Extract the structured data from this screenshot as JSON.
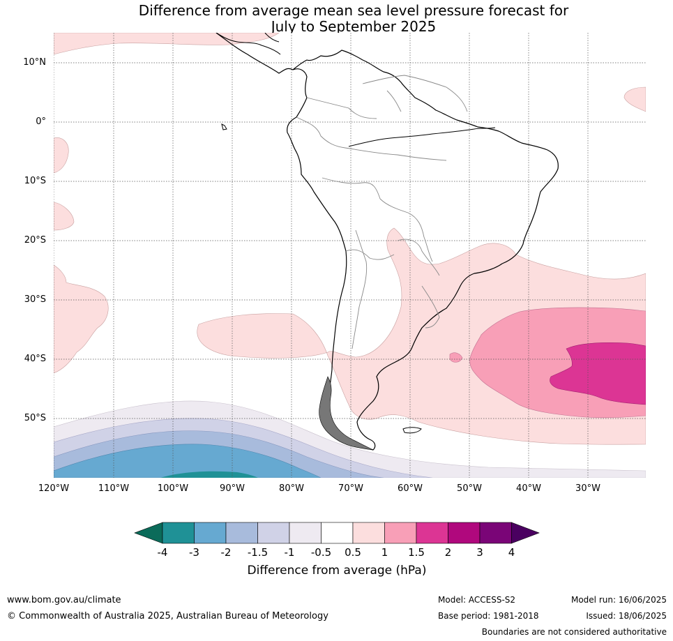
{
  "title_line1": "Difference from average mean sea level pressure forecast for",
  "title_line2": "July to September 2025",
  "lat_labels": [
    "10°N",
    "0°",
    "10°S",
    "20°S",
    "30°S",
    "40°S",
    "50°S"
  ],
  "lon_labels": [
    "120°W",
    "110°W",
    "100°W",
    "90°W",
    "80°W",
    "70°W",
    "60°W",
    "50°W",
    "40°W",
    "30°W"
  ],
  "colorbar": {
    "ticks": [
      "-4",
      "-3",
      "-2",
      "-1.5",
      "-1",
      "-0.5",
      "0.5",
      "1",
      "1.5",
      "2",
      "3",
      "4"
    ],
    "title": "Difference from average (hPa)",
    "colors": [
      "#0b6b5a",
      "#1f9196",
      "#66a9d1",
      "#a8bbdc",
      "#d0d2e7",
      "#eeeaf1",
      "#ffffff",
      "#fcdede",
      "#f89fb7",
      "#dc3594",
      "#b0087d",
      "#7a0577",
      "#4a0060"
    ]
  },
  "footer": {
    "website": "www.bom.gov.au/climate",
    "copyright": "© Commonwealth of Australia 2025, Australian Bureau of Meteorology",
    "model": "Model: ACCESS-S2",
    "base_period": "Base period: 1981-2018",
    "model_run": "Model run: 16/06/2025",
    "issued": "Issued: 18/06/2025",
    "disclaimer": "Boundaries are not considered authoritative"
  }
}
